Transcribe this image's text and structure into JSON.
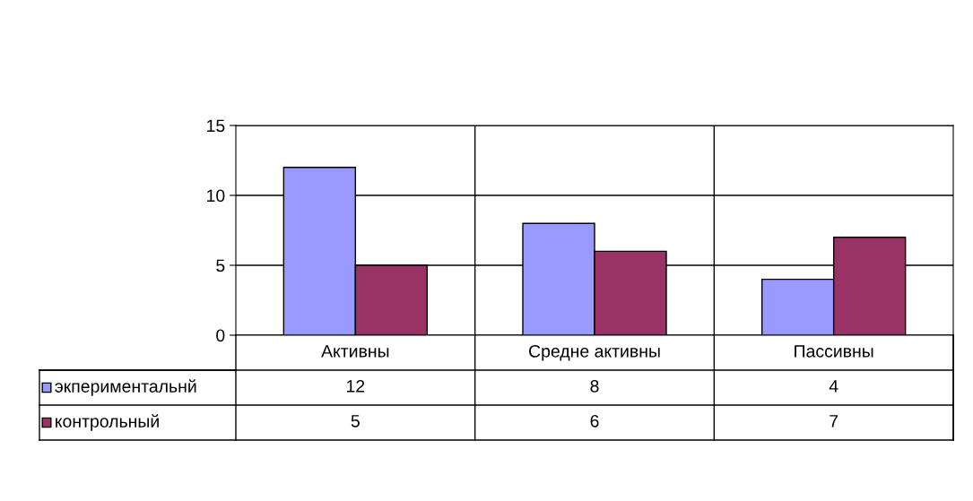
{
  "chart_data": {
    "type": "bar",
    "categories": [
      "Активны",
      "Средне активны",
      "Пассивны"
    ],
    "series": [
      {
        "name": "экпериментальнй",
        "color": "#9999ff",
        "values": [
          12,
          8,
          4
        ]
      },
      {
        "name": "контрольный",
        "color": "#993366",
        "values": [
          5,
          6,
          7
        ]
      }
    ],
    "ylim": [
      0,
      15
    ],
    "yticks": [
      0,
      5,
      10,
      15
    ],
    "grid": "y",
    "data_labels": true,
    "legend": "bottom left"
  }
}
